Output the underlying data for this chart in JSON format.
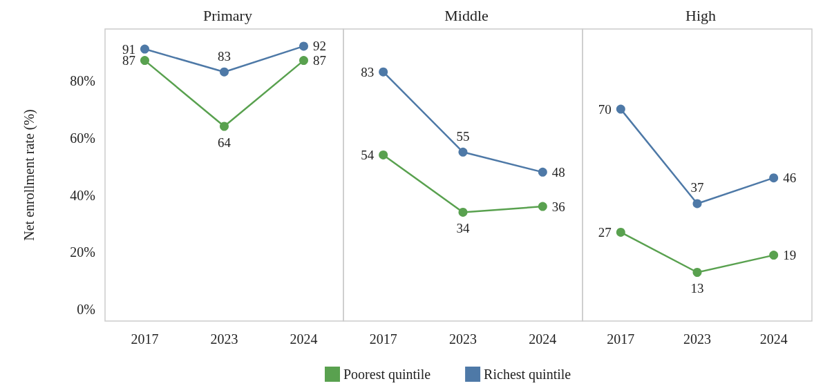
{
  "chart_data": [
    {
      "type": "line",
      "title": "Primary",
      "ylabel": "Net enrollment rate (%)",
      "categories": [
        "2017",
        "2023",
        "2024"
      ],
      "series": [
        {
          "name": "Poorest quintile",
          "color": "#59a14f",
          "values": [
            87,
            64,
            87
          ]
        },
        {
          "name": "Richest quintile",
          "color": "#4e79a7",
          "values": [
            91,
            83,
            92
          ]
        }
      ],
      "ylim": [
        -4,
        98
      ],
      "yticks": [
        {
          "value": 0,
          "label": "0%"
        },
        {
          "value": 20,
          "label": "20%"
        },
        {
          "value": 40,
          "label": "40%"
        },
        {
          "value": 60,
          "label": "60%"
        },
        {
          "value": 80,
          "label": "80%"
        }
      ],
      "data_labels": true,
      "marker": "circle",
      "legend": "bottom",
      "grid": false
    },
    {
      "type": "line",
      "title": "Middle",
      "categories": [
        "2017",
        "2023",
        "2024"
      ],
      "series": [
        {
          "name": "Poorest quintile",
          "color": "#59a14f",
          "values": [
            54,
            34,
            36
          ]
        },
        {
          "name": "Richest quintile",
          "color": "#4e79a7",
          "values": [
            83,
            55,
            48
          ]
        }
      ],
      "ylim": [
        -4,
        98
      ],
      "tick_labels": "x",
      "data_labels": true,
      "marker": "circle",
      "legend": "bottom",
      "grid": false
    },
    {
      "type": "line",
      "title": "High",
      "categories": [
        "2017",
        "2023",
        "2024"
      ],
      "series": [
        {
          "name": "Poorest quintile",
          "color": "#59a14f",
          "values": [
            27,
            13,
            19
          ]
        },
        {
          "name": "Richest quintile",
          "color": "#4e79a7",
          "values": [
            70,
            37,
            46
          ]
        }
      ],
      "ylim": [
        -4,
        98
      ],
      "tick_labels": "x",
      "data_labels": true,
      "marker": "circle",
      "legend": "bottom",
      "grid": false
    }
  ]
}
